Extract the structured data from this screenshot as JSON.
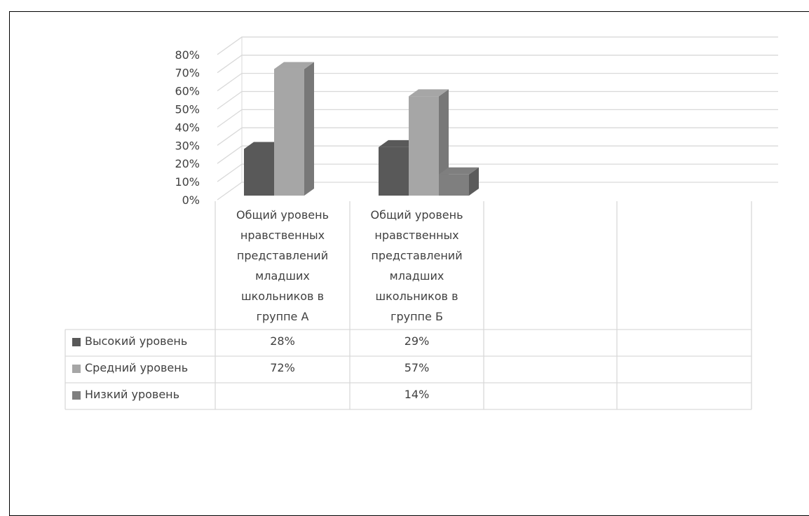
{
  "chart_data": {
    "type": "bar",
    "subtype": "3d-clustered-column-with-data-table",
    "title": "",
    "xlabel": "",
    "ylabel": "",
    "ylim": [
      0,
      80
    ],
    "ytick_labels": [
      "0%",
      "10%",
      "20%",
      "30%",
      "40%",
      "50%",
      "60%",
      "70%",
      "80%"
    ],
    "grid": true,
    "legend": "data-table",
    "categories": [
      [
        "Общий уровень",
        "нравственных",
        "представлений",
        "младших",
        "школьников в",
        "группе А"
      ],
      [
        "Общий уровень",
        "нравственных",
        "представлений",
        "младших",
        "школьников в",
        "группе Б"
      ],
      [
        ""
      ],
      [
        ""
      ]
    ],
    "series": [
      {
        "name": "Высокий уровень",
        "color": "#595959",
        "values": [
          28,
          29,
          null,
          null
        ],
        "labels": [
          "28%",
          "29%",
          "",
          ""
        ]
      },
      {
        "name": "Средний уровень",
        "color": "#a6a6a6",
        "values": [
          72,
          57,
          null,
          null
        ],
        "labels": [
          "72%",
          "57%",
          "",
          ""
        ]
      },
      {
        "name": "Низкий уровень",
        "color": "#7f7f7f",
        "values": [
          null,
          14,
          null,
          null
        ],
        "labels": [
          "",
          "14%",
          "",
          ""
        ]
      }
    ]
  }
}
